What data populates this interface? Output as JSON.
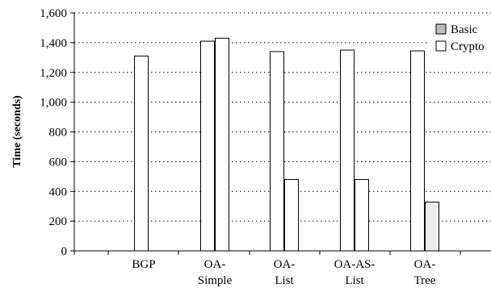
{
  "chart_data": {
    "type": "bar",
    "title": "",
    "xlabel": "",
    "ylabel": "Time (seconds)",
    "ylim": [
      0,
      1600
    ],
    "yticks": [
      0,
      200,
      400,
      600,
      800,
      1000,
      1200,
      1400,
      1600
    ],
    "ytick_labels": [
      "0",
      "200",
      "400",
      "600",
      "800",
      "1,000",
      "1,200",
      "1,400",
      "1,600"
    ],
    "categories": [
      {
        "line1": "BGP",
        "line2": ""
      },
      {
        "line1": "OA-",
        "line2": "Simple"
      },
      {
        "line1": "OA-",
        "line2": "List"
      },
      {
        "line1": "OA-AS-",
        "line2": "List"
      },
      {
        "line1": "OA-",
        "line2": "Tree"
      }
    ],
    "bars": [
      [
        1310
      ],
      [
        1410,
        1430
      ],
      [
        1340,
        480
      ],
      [
        1350,
        480
      ],
      [
        1345,
        328
      ]
    ],
    "bar_fills": [
      [
        "#ffffff"
      ],
      [
        "#ffffff",
        "#ffffff"
      ],
      [
        "#ffffff",
        "#ffffff"
      ],
      [
        "#ffffff",
        "#ffffff"
      ],
      [
        "#ffffff",
        "#ececec"
      ]
    ],
    "legend": [
      {
        "label": "Basic",
        "fill": "#bdbdbd"
      },
      {
        "label": "Crypto",
        "fill": "#ffffff"
      }
    ],
    "legend_position": "top-right",
    "grid": "horizontal-dotted"
  }
}
